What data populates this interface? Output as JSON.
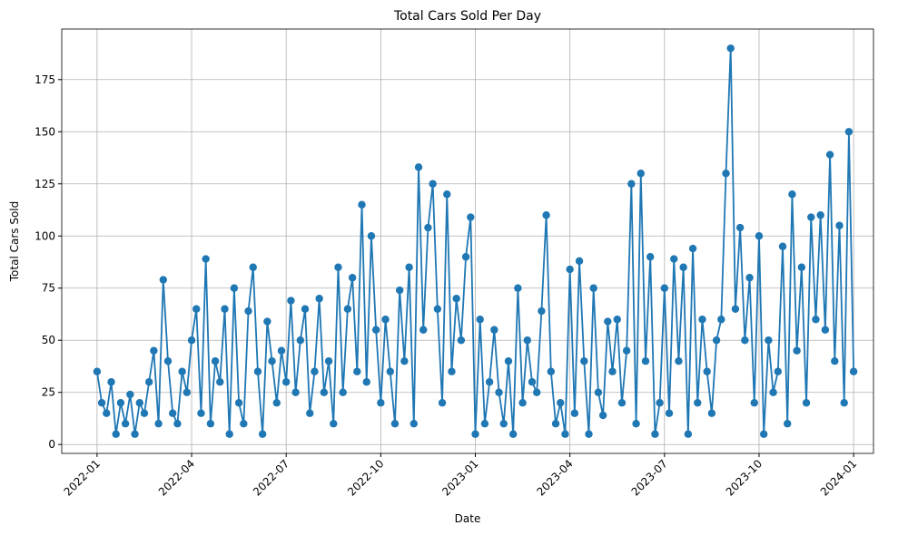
{
  "chart_data": {
    "type": "line",
    "title": "Total Cars Sold Per Day",
    "xlabel": "Date",
    "ylabel": "Total Cars Sold",
    "color": "#1f77b4",
    "grid": true,
    "xlim": [
      -1.12,
      24.63
    ],
    "ylim": [
      -4.25,
      199.25
    ],
    "xticks": [
      {
        "value": 0,
        "label": "2022-01"
      },
      {
        "value": 3,
        "label": "2022-04"
      },
      {
        "value": 6,
        "label": "2022-07"
      },
      {
        "value": 9,
        "label": "2022-10"
      },
      {
        "value": 12,
        "label": "2023-01"
      },
      {
        "value": 15,
        "label": "2023-04"
      },
      {
        "value": 18,
        "label": "2023-07"
      },
      {
        "value": 21,
        "label": "2023-10"
      },
      {
        "value": 24,
        "label": "2024-01"
      }
    ],
    "yticks": [
      0,
      25,
      50,
      75,
      100,
      125,
      150,
      175
    ],
    "x": [
      0,
      0.15,
      0.3,
      0.45,
      0.6,
      0.75,
      0.9,
      1.05,
      1.2,
      1.35,
      1.5,
      1.65,
      1.8,
      1.95,
      2.1,
      2.25,
      2.4,
      2.55,
      2.7,
      2.85,
      3,
      3.15,
      3.3,
      3.45,
      3.6,
      3.75,
      3.9,
      4.05,
      4.2,
      4.35,
      4.5,
      4.65,
      4.8,
      4.95,
      5.1,
      5.25,
      5.4,
      5.55,
      5.7,
      5.85,
      6,
      6.15,
      6.3,
      6.45,
      6.6,
      6.75,
      6.9,
      7.05,
      7.2,
      7.35,
      7.5,
      7.65,
      7.8,
      7.95,
      8.1,
      8.25,
      8.4,
      8.55,
      8.7,
      8.85,
      9,
      9.15,
      9.3,
      9.45,
      9.6,
      9.75,
      9.9,
      10.05,
      10.2,
      10.35,
      10.5,
      10.65,
      10.8,
      10.95,
      11.1,
      11.25,
      11.4,
      11.55,
      11.7,
      11.85,
      12,
      12.15,
      12.3,
      12.45,
      12.6,
      12.75,
      12.9,
      13.05,
      13.2,
      13.35,
      13.5,
      13.65,
      13.8,
      13.95,
      14.1,
      14.25,
      14.4,
      14.55,
      14.7,
      14.85,
      15,
      15.15,
      15.3,
      15.45,
      15.6,
      15.75,
      15.9,
      16.05,
      16.2,
      16.35,
      16.5,
      16.65,
      16.8,
      16.95,
      17.1,
      17.25,
      17.4,
      17.55,
      17.7,
      17.85,
      18,
      18.15,
      18.3,
      18.45,
      18.6,
      18.75,
      18.9,
      19.05,
      19.2,
      19.35,
      19.5,
      19.65,
      19.8,
      19.95,
      20.1,
      20.25,
      20.4,
      20.55,
      20.7,
      20.85,
      21,
      21.15,
      21.3,
      21.45,
      21.6,
      21.75,
      21.9,
      22.05,
      22.2,
      22.35,
      22.5,
      22.65,
      22.8,
      22.95,
      23.1,
      23.25,
      23.4,
      23.55,
      23.7,
      23.85,
      24
    ],
    "values": [
      35,
      20,
      15,
      30,
      5,
      20,
      10,
      24,
      5,
      20,
      15,
      30,
      45,
      10,
      79,
      40,
      15,
      10,
      35,
      25,
      50,
      65,
      15,
      89,
      10,
      40,
      30,
      65,
      5,
      75,
      20,
      10,
      64,
      85,
      35,
      5,
      59,
      40,
      20,
      45,
      30,
      69,
      25,
      50,
      65,
      15,
      35,
      70,
      25,
      40,
      10,
      85,
      25,
      65,
      80,
      35,
      115,
      30,
      100,
      55,
      20,
      60,
      35,
      10,
      74,
      40,
      85,
      10,
      133,
      55,
      104,
      125,
      65,
      20,
      120,
      35,
      70,
      50,
      90,
      109,
      5,
      60,
      10,
      30,
      55,
      25,
      10,
      40,
      5,
      75,
      20,
      50,
      30,
      25,
      64,
      110,
      35,
      10,
      20,
      5,
      84,
      15,
      88,
      40,
      5,
      75,
      25,
      14,
      59,
      35,
      60,
      20,
      45,
      125,
      10,
      130,
      40,
      90,
      5,
      20,
      75,
      15,
      89,
      40,
      85,
      5,
      94,
      20,
      60,
      35,
      15,
      50,
      60,
      130,
      190,
      65,
      104,
      50,
      80,
      20,
      100,
      5,
      50,
      25,
      35,
      95,
      10,
      120,
      45,
      85,
      20,
      109,
      60,
      110,
      55,
      139,
      40,
      105,
      20,
      150,
      35
    ]
  }
}
